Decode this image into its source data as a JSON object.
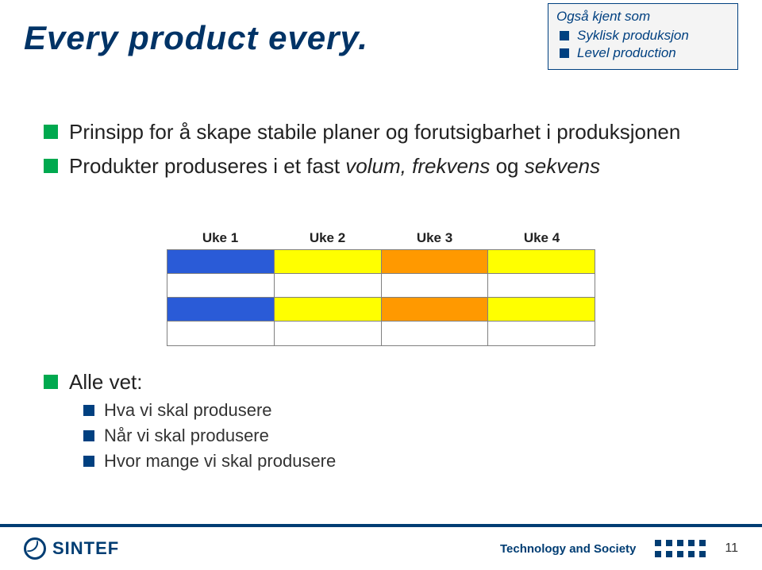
{
  "title": "Every product every.",
  "aka": {
    "header": "Også kjent som",
    "items": [
      "Syklisk produksjon",
      "Level production"
    ]
  },
  "bullets": {
    "line1_plain": "Prinsipp for å skape stabile planer og forutsigbarhet i produksjonen",
    "line2_prefix": "Produkter produseres i et fast ",
    "line2_em1": "volum, frekvens",
    "line2_mid": " og ",
    "line2_em2": "sekvens"
  },
  "chart": {
    "weeks": [
      "Uke 1",
      "Uke 2",
      "Uke 3",
      "Uke 4"
    ],
    "rows": [
      [
        "#2a5bd7",
        "#ffff00",
        "#ff9900",
        "#ffff00"
      ],
      [
        "#ffffff",
        "#ffffff",
        "#ffffff",
        "#ffffff"
      ],
      [
        "#2a5bd7",
        "#ffff00",
        "#ff9900",
        "#ffff00"
      ],
      [
        "#ffffff",
        "#ffffff",
        "#ffffff",
        "#ffffff"
      ]
    ],
    "border_color": "#808080"
  },
  "sub": {
    "header": "Alle vet:",
    "items": [
      "Hva vi skal produsere",
      "Når vi skal produsere",
      "Hvor mange vi skal produsere"
    ]
  },
  "footer": {
    "logo_text": "SINTEF",
    "label": "Technology and Society",
    "page": "11"
  },
  "colors": {
    "title": "#003366",
    "green_bullet": "#00a94f",
    "blue_bullet": "#004080",
    "footer_bar": "#003d73"
  }
}
